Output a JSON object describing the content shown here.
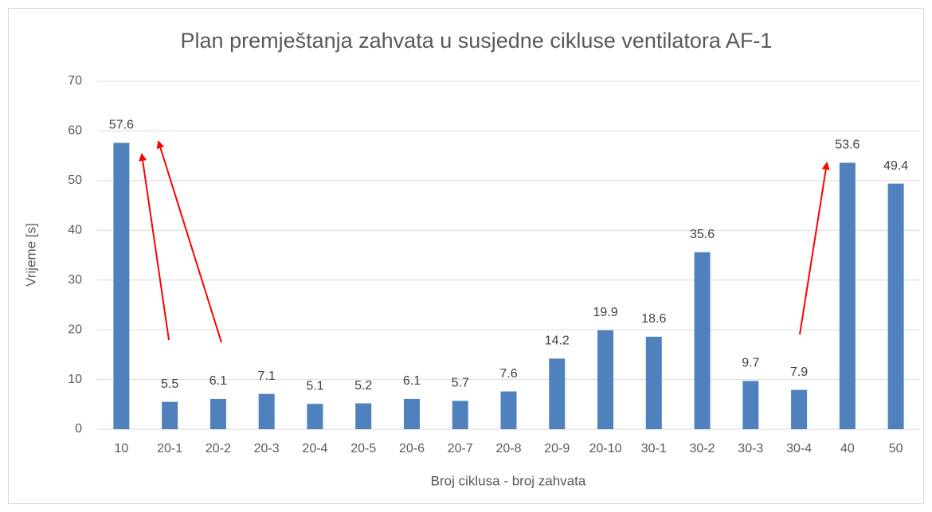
{
  "chart_data": {
    "type": "bar",
    "title": "Plan premještanja zahvata u susjedne cikluse ventilatora AF-1",
    "x_label": "Broj ciklusa - broj zahvata",
    "y_label": "Vrijeme [s]",
    "categories": [
      "10",
      "20-1",
      "20-2",
      "20-3",
      "20-4",
      "20-5",
      "20-6",
      "20-7",
      "20-8",
      "20-9",
      "20-10",
      "30-1",
      "30-2",
      "30-3",
      "30-4",
      "40",
      "50"
    ],
    "values": [
      57.6,
      5.5,
      6.1,
      7.1,
      5.1,
      5.2,
      6.1,
      5.7,
      7.6,
      14.2,
      19.9,
      18.6,
      35.6,
      9.7,
      7.9,
      53.6,
      49.4
    ],
    "color": "#4f81bd",
    "ylim": [
      0,
      70
    ],
    "yticks": [
      0,
      10,
      20,
      30,
      40,
      50,
      60,
      70
    ],
    "grid": true
  }
}
